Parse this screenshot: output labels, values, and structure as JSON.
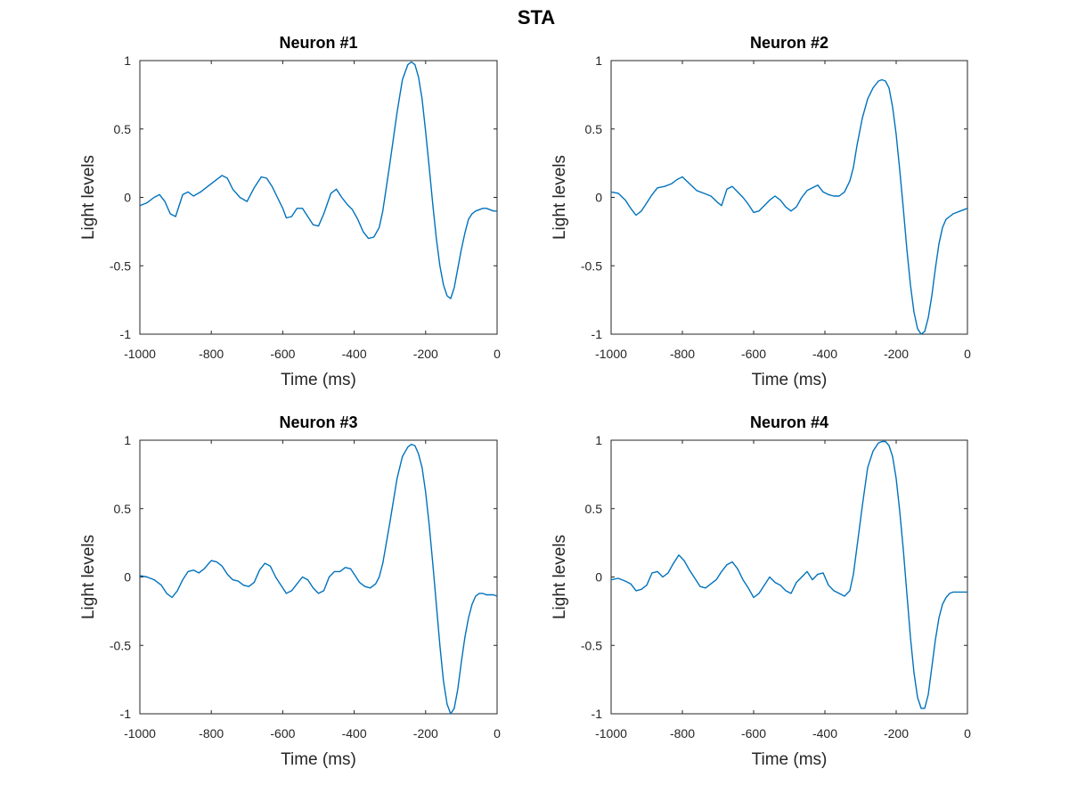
{
  "figure_title": "STA",
  "colors": {
    "line": "#0072bd",
    "axes": "#262626",
    "background": "#ffffff"
  },
  "chart_data": [
    {
      "type": "line",
      "title": "Neuron #1",
      "xlabel": "Time (ms)",
      "ylabel": "Light levels",
      "xlim": [
        -1000,
        0
      ],
      "ylim": [
        -1,
        1
      ],
      "xticks": [
        "-1000",
        "-800",
        "-600",
        "-400",
        "-200",
        "0"
      ],
      "yticks": [
        "-1",
        "-0.5",
        "0",
        "0.5",
        "1"
      ],
      "grid": false,
      "series": [
        {
          "x": [
            -1000,
            -980,
            -960,
            -945,
            -930,
            -915,
            -900,
            -880,
            -865,
            -850,
            -830,
            -810,
            -790,
            -770,
            -755,
            -740,
            -720,
            -700,
            -680,
            -660,
            -645,
            -630,
            -615,
            -600,
            -590,
            -575,
            -560,
            -545,
            -530,
            -515,
            -500,
            -485,
            -465,
            -450,
            -435,
            -420,
            -405,
            -390,
            -375,
            -360,
            -345,
            -330,
            -320,
            -300,
            -280,
            -265,
            -250,
            -240,
            -230,
            -220,
            -210,
            -200,
            -190,
            -180,
            -170,
            -160,
            -150,
            -140,
            -130,
            -120,
            -110,
            -100,
            -90,
            -80,
            -70,
            -60,
            -50,
            -40,
            -30,
            -20,
            -10,
            0
          ],
          "y": [
            -0.06,
            -0.04,
            0.0,
            0.02,
            -0.03,
            -0.12,
            -0.14,
            0.02,
            0.04,
            0.01,
            0.04,
            0.08,
            0.12,
            0.16,
            0.14,
            0.06,
            0.0,
            -0.03,
            0.07,
            0.15,
            0.14,
            0.08,
            0.0,
            -0.08,
            -0.15,
            -0.14,
            -0.08,
            -0.08,
            -0.14,
            -0.2,
            -0.21,
            -0.12,
            0.03,
            0.06,
            0.0,
            -0.05,
            -0.09,
            -0.16,
            -0.25,
            -0.3,
            -0.29,
            -0.22,
            -0.1,
            0.25,
            0.62,
            0.86,
            0.97,
            0.99,
            0.97,
            0.88,
            0.72,
            0.48,
            0.22,
            -0.05,
            -0.3,
            -0.5,
            -0.64,
            -0.72,
            -0.74,
            -0.66,
            -0.52,
            -0.38,
            -0.26,
            -0.16,
            -0.12,
            -0.1,
            -0.09,
            -0.08,
            -0.08,
            -0.09,
            -0.1,
            -0.1
          ]
        }
      ]
    },
    {
      "type": "line",
      "title": "Neuron #2",
      "xlabel": "Time (ms)",
      "ylabel": "Light levels",
      "xlim": [
        -1000,
        0
      ],
      "ylim": [
        -1,
        1
      ],
      "xticks": [
        "-1000",
        "-800",
        "-600",
        "-400",
        "-200",
        "0"
      ],
      "yticks": [
        "-1",
        "-0.5",
        "0",
        "0.5",
        "1"
      ],
      "grid": false,
      "series": [
        {
          "x": [
            -1000,
            -980,
            -960,
            -945,
            -930,
            -915,
            -900,
            -885,
            -870,
            -850,
            -830,
            -815,
            -800,
            -780,
            -760,
            -740,
            -720,
            -700,
            -690,
            -675,
            -660,
            -645,
            -630,
            -615,
            -600,
            -585,
            -570,
            -555,
            -540,
            -525,
            -510,
            -495,
            -480,
            -465,
            -450,
            -435,
            -420,
            -405,
            -390,
            -375,
            -360,
            -345,
            -330,
            -320,
            -310,
            -295,
            -280,
            -265,
            -250,
            -240,
            -230,
            -220,
            -210,
            -200,
            -190,
            -180,
            -170,
            -160,
            -150,
            -140,
            -130,
            -120,
            -110,
            -100,
            -90,
            -80,
            -70,
            -60,
            -50,
            -40,
            -30,
            -20,
            -10,
            0
          ],
          "y": [
            0.04,
            0.03,
            -0.02,
            -0.08,
            -0.13,
            -0.1,
            -0.04,
            0.02,
            0.07,
            0.08,
            0.1,
            0.13,
            0.15,
            0.1,
            0.05,
            0.03,
            0.01,
            -0.04,
            -0.06,
            0.06,
            0.08,
            0.04,
            0.0,
            -0.05,
            -0.11,
            -0.1,
            -0.06,
            -0.02,
            0.01,
            -0.02,
            -0.07,
            -0.1,
            -0.07,
            0.0,
            0.05,
            0.07,
            0.09,
            0.04,
            0.02,
            0.01,
            0.01,
            0.04,
            0.12,
            0.22,
            0.38,
            0.58,
            0.72,
            0.8,
            0.85,
            0.86,
            0.85,
            0.8,
            0.66,
            0.46,
            0.2,
            -0.08,
            -0.38,
            -0.64,
            -0.84,
            -0.96,
            -1.0,
            -0.98,
            -0.88,
            -0.72,
            -0.52,
            -0.34,
            -0.22,
            -0.16,
            -0.14,
            -0.12,
            -0.11,
            -0.1,
            -0.09,
            -0.08
          ]
        }
      ]
    },
    {
      "type": "line",
      "title": "Neuron #3",
      "xlabel": "Time (ms)",
      "ylabel": "Light levels",
      "xlim": [
        -1000,
        0
      ],
      "ylim": [
        -1,
        1
      ],
      "xticks": [
        "-1000",
        "-800",
        "-600",
        "-400",
        "-200",
        "0"
      ],
      "yticks": [
        "-1",
        "-0.5",
        "0",
        "0.5",
        "1"
      ],
      "grid": false,
      "series": [
        {
          "x": [
            -1000,
            -980,
            -960,
            -940,
            -925,
            -910,
            -895,
            -880,
            -865,
            -850,
            -835,
            -820,
            -800,
            -785,
            -770,
            -755,
            -740,
            -725,
            -710,
            -695,
            -680,
            -665,
            -650,
            -635,
            -620,
            -605,
            -590,
            -575,
            -560,
            -545,
            -530,
            -515,
            -500,
            -485,
            -470,
            -455,
            -440,
            -425,
            -410,
            -400,
            -385,
            -370,
            -355,
            -340,
            -330,
            -320,
            -300,
            -280,
            -265,
            -250,
            -240,
            -230,
            -220,
            -210,
            -200,
            -190,
            -180,
            -170,
            -160,
            -150,
            -140,
            -130,
            -120,
            -110,
            -100,
            -90,
            -80,
            -70,
            -60,
            -50,
            -40,
            -30,
            -20,
            -10,
            0
          ],
          "y": [
            0.01,
            0.0,
            -0.02,
            -0.06,
            -0.12,
            -0.15,
            -0.1,
            -0.02,
            0.04,
            0.05,
            0.03,
            0.06,
            0.12,
            0.11,
            0.08,
            0.02,
            -0.02,
            -0.03,
            -0.06,
            -0.07,
            -0.04,
            0.05,
            0.1,
            0.08,
            0.0,
            -0.06,
            -0.12,
            -0.1,
            -0.05,
            0.0,
            -0.02,
            -0.08,
            -0.12,
            -0.1,
            0.0,
            0.04,
            0.04,
            0.07,
            0.06,
            0.02,
            -0.04,
            -0.07,
            -0.08,
            -0.05,
            0.0,
            0.1,
            0.4,
            0.72,
            0.88,
            0.95,
            0.97,
            0.96,
            0.9,
            0.8,
            0.62,
            0.38,
            0.1,
            -0.2,
            -0.5,
            -0.76,
            -0.93,
            -1.0,
            -0.96,
            -0.82,
            -0.62,
            -0.44,
            -0.3,
            -0.2,
            -0.14,
            -0.12,
            -0.12,
            -0.13,
            -0.13,
            -0.13,
            -0.14
          ]
        }
      ]
    },
    {
      "type": "line",
      "title": "Neuron #4",
      "xlabel": "Time (ms)",
      "ylabel": "Light levels",
      "xlim": [
        -1000,
        0
      ],
      "ylim": [
        -1,
        1
      ],
      "xticks": [
        "-1000",
        "-800",
        "-600",
        "-400",
        "-200",
        "0"
      ],
      "yticks": [
        "-1",
        "-0.5",
        "0",
        "0.5",
        "1"
      ],
      "grid": false,
      "series": [
        {
          "x": [
            -1000,
            -980,
            -960,
            -945,
            -930,
            -915,
            -900,
            -885,
            -870,
            -855,
            -840,
            -825,
            -810,
            -795,
            -780,
            -765,
            -750,
            -735,
            -720,
            -705,
            -690,
            -675,
            -660,
            -645,
            -630,
            -615,
            -600,
            -585,
            -570,
            -555,
            -540,
            -525,
            -510,
            -495,
            -480,
            -465,
            -450,
            -435,
            -420,
            -405,
            -390,
            -375,
            -360,
            -345,
            -330,
            -320,
            -310,
            -295,
            -280,
            -265,
            -250,
            -240,
            -230,
            -220,
            -210,
            -200,
            -190,
            -180,
            -170,
            -160,
            -150,
            -140,
            -130,
            -120,
            -110,
            -100,
            -90,
            -80,
            -70,
            -60,
            -50,
            -40,
            -30,
            -20,
            -10,
            0
          ],
          "y": [
            -0.02,
            -0.01,
            -0.03,
            -0.05,
            -0.1,
            -0.09,
            -0.06,
            0.03,
            0.04,
            0.0,
            0.03,
            0.1,
            0.16,
            0.12,
            0.05,
            -0.01,
            -0.07,
            -0.08,
            -0.05,
            -0.02,
            0.04,
            0.09,
            0.11,
            0.06,
            -0.02,
            -0.08,
            -0.15,
            -0.12,
            -0.06,
            0.0,
            -0.04,
            -0.06,
            -0.1,
            -0.12,
            -0.04,
            0.0,
            0.04,
            -0.02,
            0.02,
            0.03,
            -0.06,
            -0.1,
            -0.12,
            -0.14,
            -0.1,
            0.02,
            0.22,
            0.52,
            0.8,
            0.92,
            0.98,
            0.99,
            0.99,
            0.96,
            0.88,
            0.72,
            0.48,
            0.2,
            -0.12,
            -0.44,
            -0.7,
            -0.88,
            -0.96,
            -0.96,
            -0.86,
            -0.66,
            -0.46,
            -0.3,
            -0.2,
            -0.15,
            -0.12,
            -0.11,
            -0.11,
            -0.11,
            -0.11,
            -0.11
          ]
        }
      ]
    }
  ]
}
